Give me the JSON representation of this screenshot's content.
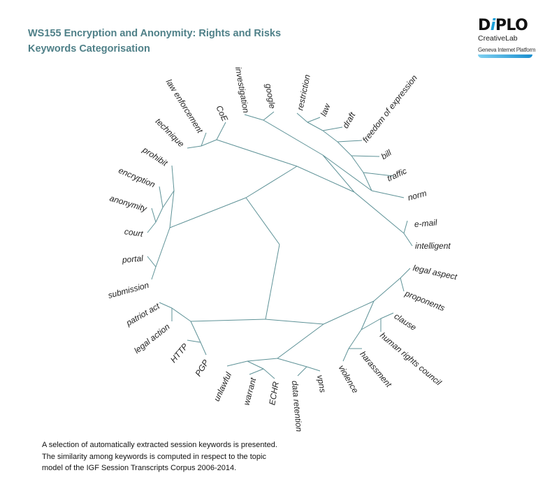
{
  "header": {
    "title": "WS155 Encryption and Anonymity: Rights and Risks",
    "subtitle": "Keywords Categorisation"
  },
  "logo": {
    "wordmark": "DiPLO",
    "line1": "CreativeLab",
    "line2": "Geneva Internet Platform"
  },
  "colors": {
    "branch": "#5e9297",
    "title": "#4f8088",
    "accent": "#1aa0d8"
  },
  "dendrogram": {
    "type": "radial-dendrogram",
    "clusters": [
      {
        "keywords": [
          "investigation",
          "google"
        ]
      },
      {
        "keywords": [
          "restriction",
          "law",
          "draft",
          "freedom of expression",
          "bill",
          "traffic",
          "norm"
        ]
      },
      {
        "keywords": [
          "e-mail",
          "intelligent"
        ]
      },
      {
        "keywords": [
          "law enforcement",
          "technique",
          "CoE"
        ]
      },
      {
        "keywords": [
          "prohibit",
          "encryption",
          "anonymity",
          "court",
          "portal",
          "submission"
        ]
      },
      {
        "keywords": [
          "patriot act",
          "legal action",
          "HTTP",
          "PGP"
        ]
      },
      {
        "keywords": [
          "unlawful",
          "warrant",
          "ECHR",
          "data retention",
          "vpns"
        ]
      },
      {
        "keywords": [
          "legal aspect",
          "proponents",
          "clause",
          "human rights council",
          "violence",
          "harassment"
        ]
      }
    ],
    "labels": {
      "investigation": "investigation",
      "google": "google",
      "restriction": "restriction",
      "law": "law",
      "draft": "draft",
      "freedom_of_expression": "freedom of expression",
      "bill": "bill",
      "traffic": "traffic",
      "norm": "norm",
      "e_mail": "e-mail",
      "intelligent": "intelligent",
      "law_enforcement": "law enforcement",
      "technique": "technique",
      "coe": "CoE",
      "prohibit": "prohibit",
      "encryption": "encryption",
      "anonymity": "anonymity",
      "court": "court",
      "portal": "portal",
      "submission": "submission",
      "patriot_act": "patriot act",
      "legal_action": "legal action",
      "http": "HTTP",
      "pgp": "PGP",
      "unlawful": "unlawful",
      "warrant": "warrant",
      "echr": "ECHR",
      "data_retention": "data retention",
      "vpns": "vpns",
      "legal_aspect": "legal aspect",
      "proponents": "proponents",
      "clause": "clause",
      "human_rights_council": "human rights council",
      "violence": "violence",
      "harassment": "harassment"
    }
  },
  "footer": {
    "line1": "A selection of automatically extracted session keywords is presented.",
    "line2": "The similarity among keywords is computed in respect to the topic",
    "line3": "model of the IGF Session Transcripts Corpus 2006-2014."
  }
}
